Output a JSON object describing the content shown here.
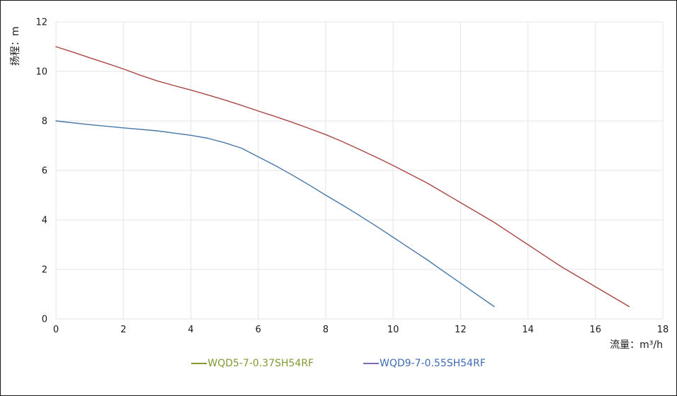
{
  "chart_data": {
    "type": "line",
    "title": "",
    "xlabel": "流量：m³/h",
    "ylabel": "扬程：m",
    "xlim": [
      0,
      18
    ],
    "ylim": [
      0,
      12
    ],
    "xticks": [
      0,
      2,
      4,
      6,
      8,
      10,
      12,
      14,
      16,
      18
    ],
    "yticks": [
      0,
      2,
      4,
      6,
      8,
      10,
      12
    ],
    "grid": true,
    "grid_color": "#e4e4e4",
    "legend_position": "bottom",
    "series": [
      {
        "name": "WQD5-7-0.37SH54RF",
        "line_color": "#4878a8",
        "legend_dash_color": "#8a9a2e",
        "legend_text_color": "#7f9a35",
        "points": [
          [
            0,
            8.0
          ],
          [
            1,
            7.85
          ],
          [
            2,
            7.72
          ],
          [
            3,
            7.6
          ],
          [
            4,
            7.42
          ],
          [
            4.5,
            7.3
          ],
          [
            5,
            7.12
          ],
          [
            5.5,
            6.9
          ],
          [
            6,
            6.55
          ],
          [
            6.5,
            6.2
          ],
          [
            7,
            5.82
          ],
          [
            7.5,
            5.42
          ],
          [
            8,
            5.0
          ],
          [
            8.5,
            4.6
          ],
          [
            9,
            4.18
          ],
          [
            9.5,
            3.75
          ],
          [
            10,
            3.3
          ],
          [
            10.5,
            2.85
          ],
          [
            11,
            2.4
          ],
          [
            11.5,
            1.92
          ],
          [
            12,
            1.45
          ],
          [
            12.5,
            0.97
          ],
          [
            13,
            0.5
          ]
        ]
      },
      {
        "name": "WQD9-7-0.55SH54RF",
        "line_color": "#a94744",
        "legend_dash_color": "#7e6bb5",
        "legend_text_color": "#3f6cb5",
        "points": [
          [
            0,
            11.0
          ],
          [
            0.5,
            10.78
          ],
          [
            1,
            10.55
          ],
          [
            1.5,
            10.33
          ],
          [
            2,
            10.1
          ],
          [
            2.5,
            9.85
          ],
          [
            3,
            9.62
          ],
          [
            3.5,
            9.43
          ],
          [
            4,
            9.25
          ],
          [
            4.5,
            9.05
          ],
          [
            5,
            8.85
          ],
          [
            5.5,
            8.63
          ],
          [
            6,
            8.4
          ],
          [
            6.5,
            8.18
          ],
          [
            7,
            7.95
          ],
          [
            7.5,
            7.7
          ],
          [
            8,
            7.45
          ],
          [
            8.5,
            7.16
          ],
          [
            9,
            6.85
          ],
          [
            9.5,
            6.53
          ],
          [
            10,
            6.2
          ],
          [
            10.5,
            5.85
          ],
          [
            11,
            5.5
          ],
          [
            11.5,
            5.1
          ],
          [
            12,
            4.7
          ],
          [
            12.5,
            4.3
          ],
          [
            13,
            3.9
          ],
          [
            13.5,
            3.45
          ],
          [
            14,
            3.0
          ],
          [
            14.5,
            2.55
          ],
          [
            15,
            2.1
          ],
          [
            15.5,
            1.7
          ],
          [
            16,
            1.3
          ],
          [
            16.5,
            0.9
          ],
          [
            17,
            0.5
          ]
        ]
      }
    ]
  }
}
